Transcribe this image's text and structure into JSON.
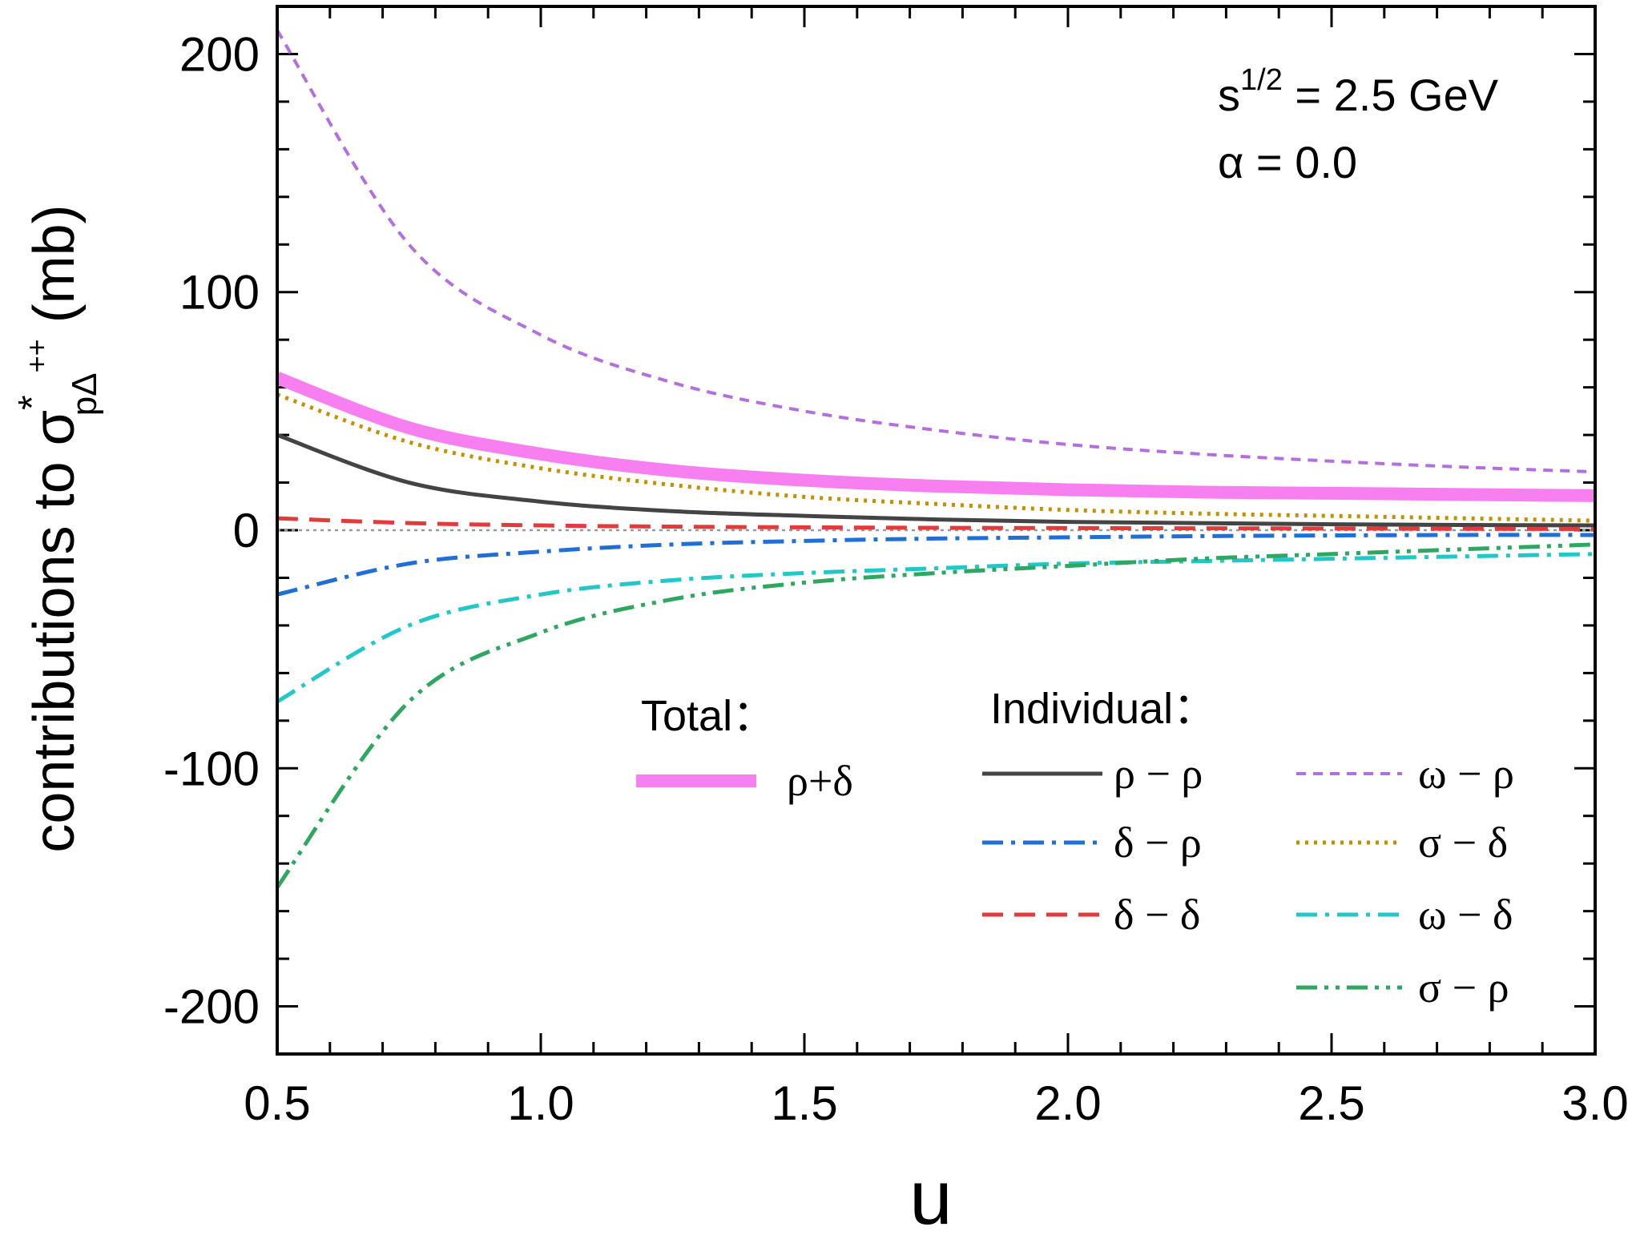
{
  "chart_data": {
    "type": "line",
    "xlabel": "u",
    "ylabel": {
      "prefix": "contributions to σ",
      "superscript": "*",
      "subscript": "pΔ",
      "sub_superscript": "++",
      "suffix": " (mb)"
    },
    "xlim": [
      0.5,
      3.0
    ],
    "ylim": [
      -220,
      220
    ],
    "x_ticks": [
      "0.5",
      "1.0",
      "1.5",
      "2.0",
      "2.5",
      "3.0"
    ],
    "y_ticks": [
      "-200",
      "-100",
      "0",
      "100",
      "200"
    ],
    "x_tick_values": [
      0.5,
      1.0,
      1.5,
      2.0,
      2.5,
      3.0
    ],
    "y_tick_values": [
      -200,
      -100,
      0,
      100,
      200
    ],
    "zero_line": true,
    "annotations": {
      "energy": {
        "base": "s",
        "sup": "1/2",
        "rest": " = 2.5 GeV"
      },
      "alpha": "α = 0.0"
    },
    "legend": {
      "total_heading": "Total：",
      "individual_heading": "Individual："
    },
    "x": [
      0.5,
      0.75,
      1.0,
      1.25,
      1.5,
      1.75,
      2.0,
      2.25,
      2.5,
      2.75,
      3.0
    ],
    "series": [
      {
        "name": "ρ+δ",
        "group": "total",
        "color": "#f77ff0",
        "dash": "solid",
        "width": 16,
        "values": [
          64,
          43,
          32,
          25,
          21,
          18.5,
          17,
          16,
          15.5,
          15,
          14.5
        ]
      },
      {
        "name": "ρ − ρ",
        "group": "individual",
        "color": "#444444",
        "dash": "solid",
        "width": 5,
        "values": [
          40,
          20,
          12,
          8,
          6,
          4.5,
          3.5,
          3,
          2.5,
          2.2,
          2
        ]
      },
      {
        "name": "δ − ρ",
        "group": "individual",
        "color": "#1f6fd6",
        "dash": "dashdot",
        "width": 5,
        "values": [
          -27,
          -14,
          -9,
          -6,
          -4.5,
          -3.5,
          -3,
          -2.5,
          -2.2,
          -2,
          -2
        ]
      },
      {
        "name": "δ − δ",
        "group": "individual",
        "color": "#e33b3b",
        "dash": "dashed",
        "width": 5,
        "values": [
          5,
          3,
          2,
          1.5,
          1.2,
          1,
          0.9,
          0.8,
          0.7,
          0.6,
          0.5
        ]
      },
      {
        "name": "ω − ρ",
        "group": "individual",
        "color": "#b36fe0",
        "dash": "shortdash",
        "width": 4,
        "values": [
          210,
          120,
          82,
          62,
          50,
          42,
          36,
          32,
          29,
          26.5,
          24.5
        ]
      },
      {
        "name": "σ − δ",
        "group": "individual",
        "color": "#c49000",
        "dash": "dotted",
        "width": 5,
        "values": [
          57,
          37,
          26,
          19,
          14,
          11,
          8.5,
          7,
          6,
          5,
          4
        ]
      },
      {
        "name": "ω − δ",
        "group": "individual",
        "color": "#22c7c7",
        "dash": "dashdot",
        "width": 5,
        "values": [
          -72,
          -40,
          -27,
          -21,
          -18,
          -16,
          -14,
          -13,
          -12,
          -11,
          -10
        ]
      },
      {
        "name": "σ − ρ",
        "group": "individual",
        "color": "#2ea860",
        "dash": "dashdotdot",
        "width": 5,
        "values": [
          -150,
          -72,
          -43,
          -29,
          -22,
          -18,
          -15,
          -12,
          -10,
          -8,
          -6
        ]
      }
    ]
  }
}
